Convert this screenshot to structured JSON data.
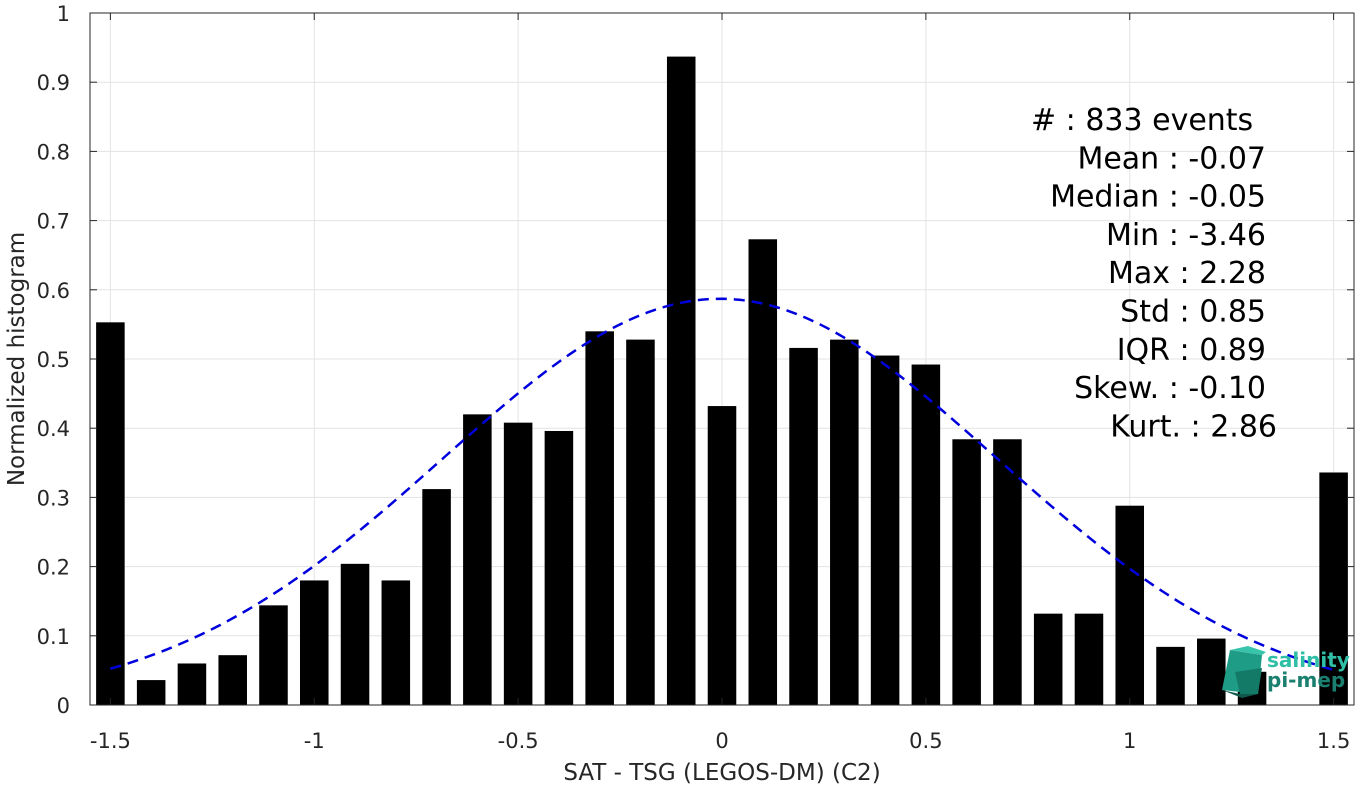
{
  "chart_data": {
    "type": "bar",
    "xlabel": "SAT - TSG (LEGOS-DM) (C2)",
    "ylabel": "Normalized histogram",
    "xlim": [
      -1.55,
      1.55
    ],
    "ylim": [
      0,
      1
    ],
    "xticks": [
      -1.5,
      -1,
      -0.5,
      0,
      0.5,
      1,
      1.5
    ],
    "xtick_labels": [
      "-1.5",
      "-1",
      "-0.5",
      "0",
      "0.5",
      "1",
      "1.5"
    ],
    "yticks": [
      0,
      0.1,
      0.2,
      0.3,
      0.4,
      0.5,
      0.6,
      0.7,
      0.8,
      0.9,
      1
    ],
    "ytick_labels": [
      "0",
      "0.1",
      "0.2",
      "0.3",
      "0.4",
      "0.5",
      "0.6",
      "0.7",
      "0.8",
      "0.9",
      "1"
    ],
    "grid": true,
    "bar_color": "#000000",
    "bar_width": 0.07,
    "x": [
      -1.5,
      -1.4,
      -1.3,
      -1.2,
      -1.1,
      -1.0,
      -0.9,
      -0.8,
      -0.7,
      -0.6,
      -0.5,
      -0.4,
      -0.3,
      -0.2,
      -0.1,
      0.0,
      0.1,
      0.2,
      0.3,
      0.4,
      0.5,
      0.6,
      0.7,
      0.8,
      0.9,
      1.0,
      1.1,
      1.2,
      1.3,
      1.4,
      1.5
    ],
    "values": [
      0.553,
      0.036,
      0.06,
      0.072,
      0.144,
      0.18,
      0.204,
      0.18,
      0.312,
      0.42,
      0.408,
      0.396,
      0.54,
      0.528,
      0.937,
      0.432,
      0.673,
      0.516,
      0.528,
      0.505,
      0.492,
      0.384,
      0.384,
      0.132,
      0.132,
      0.288,
      0.084,
      0.096,
      0.048,
      0.0,
      0.336
    ],
    "fit_curve": {
      "type": "normal",
      "mean": -0.005,
      "std": 0.68,
      "peak": 0.587,
      "x_range": [
        -1.5,
        1.5
      ],
      "color": "#0000dd",
      "style": "dashed"
    },
    "stats": [
      {
        "label": "#  : 833 events"
      },
      {
        "label": "Mean : -0.07"
      },
      {
        "label": "Median : -0.05"
      },
      {
        "label": "Min : -3.46"
      },
      {
        "label": "Max : 2.28"
      },
      {
        "label": "Std : 0.85"
      },
      {
        "label": "IQR : 0.89"
      },
      {
        "label": "Skew. : -0.10"
      },
      {
        "label": "Kurt. : 2.86"
      }
    ],
    "logo": {
      "line1": "salinity",
      "line2": "pi-mep",
      "color_line1": "#2fbfa6",
      "color_line2": "#1a7f6e"
    }
  }
}
